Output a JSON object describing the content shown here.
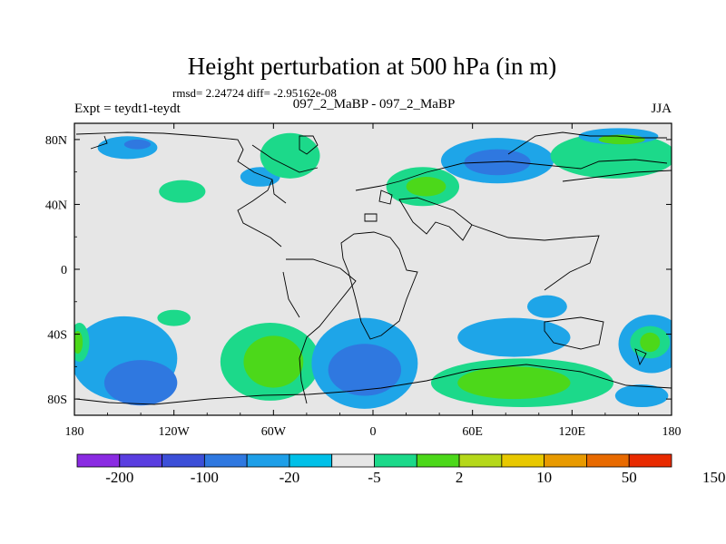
{
  "chart_data": {
    "type": "heatmap",
    "title": "Height perturbation at 500 hPa (in m)",
    "stats": "rmsd= 2.24724 diff= -2.95162e-08",
    "left_label": "Expt = teydt1-teydt",
    "center_label": "097_2_MaBP - 097_2_MaBP",
    "right_label": "JJA",
    "xlim": [
      -180,
      180
    ],
    "ylim": [
      -90,
      90
    ],
    "x_ticks": [
      {
        "value": -180,
        "label": "180"
      },
      {
        "value": -120,
        "label": "120W"
      },
      {
        "value": -60,
        "label": "60W"
      },
      {
        "value": 0,
        "label": "0"
      },
      {
        "value": 60,
        "label": "60E"
      },
      {
        "value": 120,
        "label": "120E"
      },
      {
        "value": 180,
        "label": "180"
      }
    ],
    "y_ticks": [
      {
        "value": 80,
        "label": "80N"
      },
      {
        "value": 40,
        "label": "40N"
      },
      {
        "value": 0,
        "label": "0"
      },
      {
        "value": -40,
        "label": "40S"
      },
      {
        "value": -80,
        "label": "80S"
      }
    ],
    "colorbar": {
      "colors": [
        "#8a2be2",
        "#5a3ee0",
        "#3c4fd8",
        "#2f78e0",
        "#1e9fe8",
        "#00c0e8",
        "#e6e6e6",
        "#1cd98a",
        "#4cd81a",
        "#b5d81a",
        "#e8c800",
        "#e89a00",
        "#e86a00",
        "#e82a00"
      ],
      "labels": [
        "-200",
        "-100",
        "-20",
        "-5",
        "2",
        "10",
        "50",
        "150"
      ]
    },
    "anomaly_regions": [
      {
        "lon": -148,
        "lat": 75,
        "rlon": 18,
        "rlat": 7,
        "level": "-5"
      },
      {
        "lon": -142,
        "lat": 77,
        "rlon": 8,
        "rlat": 3,
        "level": "-20"
      },
      {
        "lon": -115,
        "lat": 48,
        "rlon": 14,
        "rlat": 7,
        "level": "5"
      },
      {
        "lon": -68,
        "lat": 57,
        "rlon": 12,
        "rlat": 6,
        "level": "-5"
      },
      {
        "lon": -50,
        "lat": 70,
        "rlon": 18,
        "rlat": 14,
        "level": "5"
      },
      {
        "lon": 30,
        "lat": 51,
        "rlon": 22,
        "rlat": 12,
        "level": "5"
      },
      {
        "lon": 32,
        "lat": 51,
        "rlon": 12,
        "rlat": 6,
        "level": "10"
      },
      {
        "lon": 75,
        "lat": 67,
        "rlon": 34,
        "rlat": 14,
        "level": "-5"
      },
      {
        "lon": 75,
        "lat": 66,
        "rlon": 20,
        "rlat": 8,
        "level": "-20"
      },
      {
        "lon": 145,
        "lat": 70,
        "rlon": 38,
        "rlat": 14,
        "level": "5"
      },
      {
        "lon": 148,
        "lat": 82,
        "rlon": 24,
        "rlat": 5,
        "level": "-5"
      },
      {
        "lon": 150,
        "lat": 80,
        "rlon": 14,
        "rlat": 3,
        "level": "10"
      },
      {
        "lon": -150,
        "lat": -55,
        "rlon": 32,
        "rlat": 26,
        "level": "-5"
      },
      {
        "lon": -140,
        "lat": -70,
        "rlon": 22,
        "rlat": 14,
        "level": "-20"
      },
      {
        "lon": -177,
        "lat": -45,
        "rlon": 6,
        "rlat": 12,
        "level": "5"
      },
      {
        "lon": -178,
        "lat": -45,
        "rlon": 3,
        "rlat": 7,
        "level": "10"
      },
      {
        "lon": -120,
        "lat": -30,
        "rlon": 10,
        "rlat": 5,
        "level": "5"
      },
      {
        "lon": -62,
        "lat": -57,
        "rlon": 30,
        "rlat": 24,
        "level": "5"
      },
      {
        "lon": -60,
        "lat": -57,
        "rlon": 18,
        "rlat": 16,
        "level": "10"
      },
      {
        "lon": -5,
        "lat": -58,
        "rlon": 32,
        "rlat": 28,
        "level": "-5"
      },
      {
        "lon": -5,
        "lat": -62,
        "rlon": 22,
        "rlat": 16,
        "level": "-20"
      },
      {
        "lon": 85,
        "lat": -42,
        "rlon": 34,
        "rlat": 12,
        "level": "-5"
      },
      {
        "lon": 105,
        "lat": -23,
        "rlon": 12,
        "rlat": 7,
        "level": "-5"
      },
      {
        "lon": 90,
        "lat": -70,
        "rlon": 55,
        "rlat": 15,
        "level": "5"
      },
      {
        "lon": 85,
        "lat": -70,
        "rlon": 34,
        "rlat": 10,
        "level": "10"
      },
      {
        "lon": 168,
        "lat": -46,
        "rlon": 20,
        "rlat": 18,
        "level": "-5"
      },
      {
        "lon": 167,
        "lat": -45,
        "rlon": 12,
        "rlat": 10,
        "level": "5"
      },
      {
        "lon": 167,
        "lat": -45,
        "rlon": 6,
        "rlat": 6,
        "level": "10"
      },
      {
        "lon": 162,
        "lat": -78,
        "rlon": 16,
        "rlat": 7,
        "level": "-5"
      }
    ]
  }
}
